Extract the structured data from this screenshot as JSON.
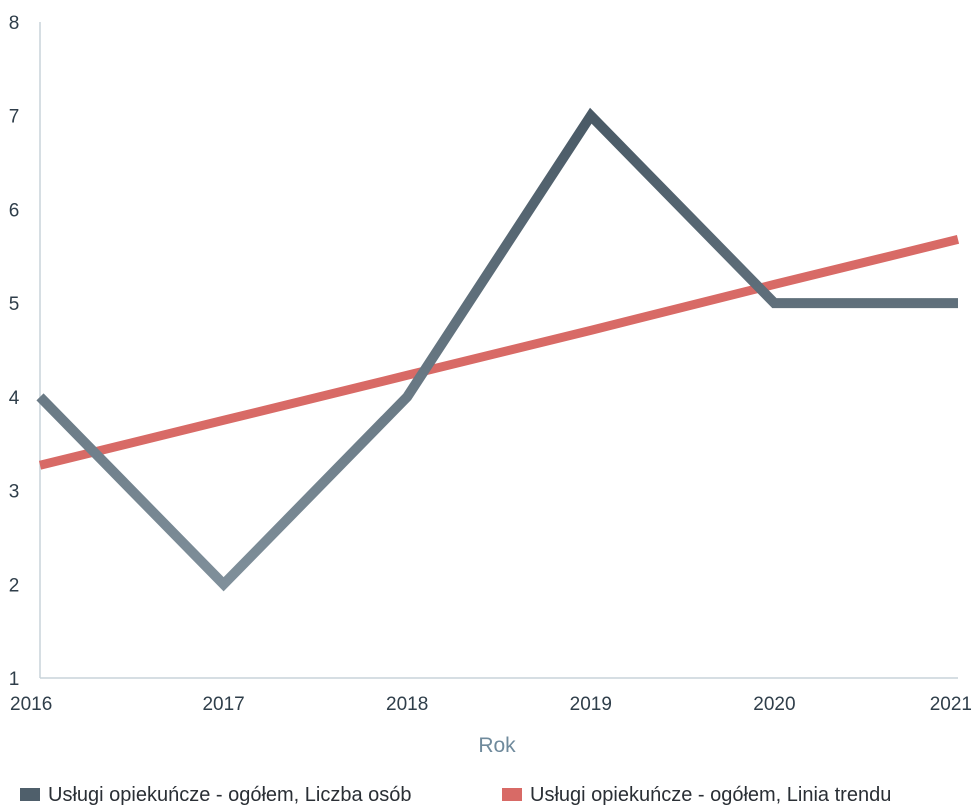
{
  "chart_data": {
    "type": "line",
    "title": "",
    "xlabel": "Rok",
    "ylabel": "",
    "categories": [
      "2016",
      "2017",
      "2018",
      "2019",
      "2020",
      "2021"
    ],
    "ylim": [
      1,
      8
    ],
    "yticks": [
      "1",
      "2",
      "3",
      "4",
      "5",
      "6",
      "7",
      "8"
    ],
    "grid": false,
    "legend_position": "bottom",
    "series": [
      {
        "name": "Usługi opiekuńcze - ogółem, Liczba osób",
        "values": [
          4,
          2,
          4,
          7,
          5,
          5
        ],
        "color": "#4f5f6b"
      },
      {
        "name": "Usługi opiekuńcze - ogółem, Linia trendu",
        "values": [
          3.27,
          3.75,
          4.23,
          4.71,
          5.2,
          5.68
        ],
        "color": "#d86a66"
      }
    ]
  }
}
